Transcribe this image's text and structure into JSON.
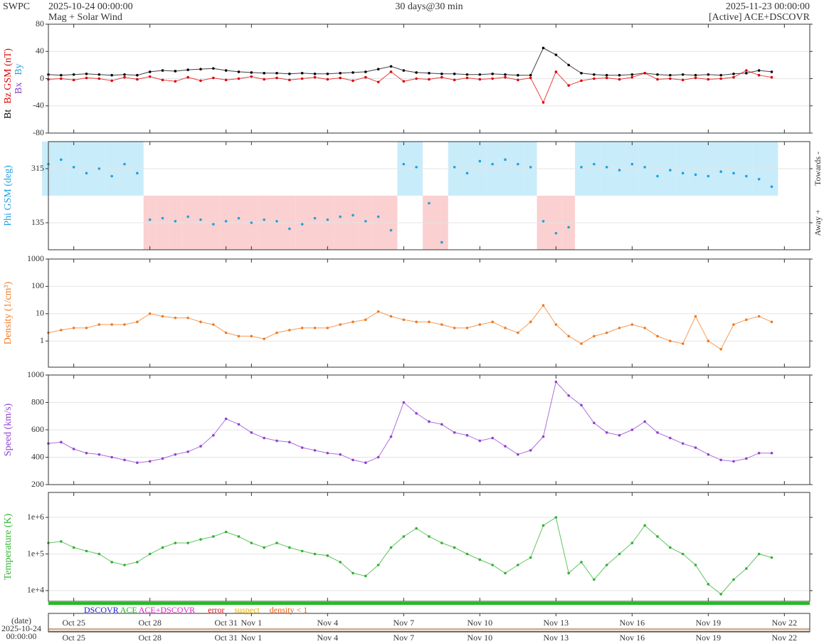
{
  "header": {
    "org": "SWPC",
    "start": "2025-10-24 00:00:00",
    "subtitle": "Mag + Solar Wind",
    "span": "30 days@30 min",
    "end": "2025-11-23 00:00:00",
    "source": "[Active] ACE+DSCOVR"
  },
  "date_label": {
    "title": "(date)",
    "day": "2025-10-24",
    "time": "00:00:00"
  },
  "time_axis": {
    "xlim": [
      0,
      30
    ],
    "xticks": [
      {
        "value": 1,
        "label": "Oct 25"
      },
      {
        "value": 4,
        "label": "Oct 28"
      },
      {
        "value": 7,
        "label": "Oct 31"
      },
      {
        "value": 8,
        "label": "Nov 1"
      },
      {
        "value": 11,
        "label": "Nov 4"
      },
      {
        "value": 14,
        "label": "Nov 7"
      },
      {
        "value": 17,
        "label": "Nov 10"
      },
      {
        "value": 20,
        "label": "Nov 13"
      },
      {
        "value": 23,
        "label": "Nov 16"
      },
      {
        "value": 26,
        "label": "Nov 19"
      },
      {
        "value": 29,
        "label": "Nov 22"
      }
    ],
    "x": [
      0,
      0.5,
      1,
      1.5,
      2,
      2.5,
      3,
      3.5,
      4,
      4.5,
      5,
      5.5,
      6,
      6.5,
      7,
      7.5,
      8,
      8.5,
      9,
      9.5,
      10,
      10.5,
      11,
      11.5,
      12,
      12.5,
      13,
      13.5,
      14,
      14.5,
      15,
      15.5,
      16,
      16.5,
      17,
      17.5,
      18,
      18.5,
      19,
      19.5,
      20,
      20.5,
      21,
      21.5,
      22,
      22.5,
      23,
      23.5,
      24,
      24.5,
      25,
      25.5,
      26,
      26.5,
      27,
      27.5,
      28,
      28.5
    ]
  },
  "status_legend": [
    {
      "text": "DSCOVR",
      "color": "#1a1ad0"
    },
    {
      "text": "ACE",
      "color": "#20b020"
    },
    {
      "text": "ACE+DSCOVR",
      "color": "#e020d0"
    },
    {
      "text": "error",
      "color": "#e01010"
    },
    {
      "text": "suspect",
      "color": "#e8b000"
    },
    {
      "text": "density < 1",
      "color": "#f06010"
    }
  ],
  "chart_data": [
    {
      "type": "line",
      "ylim": [
        -80,
        80
      ],
      "yticks": [
        -80,
        -40,
        0,
        40,
        80
      ],
      "grid": true,
      "extra_labels": [
        {
          "text": "Bx",
          "color": "#8040c0"
        },
        {
          "text": "By",
          "color": "#20a0e0"
        }
      ],
      "series": [
        {
          "name": "Bt",
          "color": "#000000",
          "values": [
            6,
            5,
            6,
            7,
            6,
            5,
            6,
            5,
            10,
            12,
            11,
            13,
            14,
            15,
            12,
            10,
            9,
            8,
            8,
            7,
            8,
            7,
            7,
            8,
            9,
            10,
            14,
            18,
            12,
            9,
            8,
            7,
            7,
            6,
            6,
            7,
            6,
            5,
            5,
            45,
            35,
            20,
            8,
            6,
            5,
            5,
            6,
            8,
            6,
            5,
            6,
            5,
            6,
            5,
            7,
            8,
            12,
            10
          ]
        },
        {
          "name": "Bz GSM (nT)",
          "color": "#e00000",
          "values": [
            -1,
            0,
            -2,
            1,
            0,
            -3,
            2,
            -1,
            3,
            -2,
            -4,
            2,
            -3,
            1,
            -2,
            0,
            3,
            -1,
            1,
            -2,
            0,
            2,
            -1,
            1,
            -3,
            2,
            -5,
            10,
            -4,
            0,
            -1,
            2,
            -2,
            1,
            -1,
            0,
            2,
            -2,
            1,
            -35,
            10,
            -10,
            -3,
            0,
            1,
            -1,
            2,
            8,
            -1,
            0,
            -2,
            1,
            -1,
            0,
            2,
            12,
            5,
            2
          ]
        }
      ]
    },
    {
      "type": "scatter",
      "ylim": [
        45,
        405
      ],
      "yticks": [
        135,
        315
      ],
      "grid": true,
      "right_labels": [
        "Towards -",
        "Away +"
      ],
      "sector_colors": [
        "#c8ecfa",
        "#fbd0d0"
      ],
      "series": [
        {
          "name": "Phi GSM (deg)",
          "color": "#20a0e0",
          "values": [
            330,
            345,
            320,
            300,
            315,
            290,
            330,
            300,
            145,
            150,
            140,
            155,
            145,
            130,
            140,
            150,
            135,
            145,
            140,
            115,
            130,
            150,
            145,
            155,
            160,
            140,
            155,
            110,
            330,
            320,
            200,
            70,
            320,
            300,
            340,
            330,
            345,
            330,
            320,
            140,
            100,
            120,
            320,
            330,
            320,
            310,
            330,
            320,
            290,
            310,
            300,
            295,
            290,
            305,
            300,
            290,
            280,
            255
          ]
        }
      ]
    },
    {
      "type": "line",
      "log": true,
      "ylim": [
        0.11,
        1000
      ],
      "yticks": [
        1,
        10,
        100,
        1000
      ],
      "grid": true,
      "series": [
        {
          "name": "Density (1/cm³)",
          "color": "#f07a20",
          "values": [
            2,
            2.5,
            3,
            3,
            4,
            4,
            4,
            5,
            10,
            8,
            7,
            7,
            5,
            4,
            2,
            1.5,
            1.5,
            1.2,
            2,
            2.5,
            3,
            3,
            3,
            4,
            5,
            6,
            12,
            8,
            6,
            5,
            5,
            4,
            3,
            3,
            4,
            5,
            3,
            2,
            5,
            20,
            4,
            1.5,
            0.8,
            1.5,
            2,
            3,
            4,
            3,
            1.5,
            1,
            0.8,
            8,
            1,
            0.5,
            4,
            6,
            8,
            5
          ]
        }
      ]
    },
    {
      "type": "line",
      "ylim": [
        200,
        1000
      ],
      "yticks": [
        200,
        400,
        600,
        800,
        1000
      ],
      "grid": true,
      "series": [
        {
          "name": "Speed (km/s)",
          "color": "#9040d0",
          "values": [
            500,
            510,
            460,
            430,
            420,
            400,
            380,
            360,
            370,
            390,
            420,
            440,
            480,
            560,
            680,
            640,
            580,
            540,
            520,
            510,
            470,
            450,
            430,
            420,
            380,
            360,
            400,
            550,
            800,
            720,
            660,
            640,
            580,
            560,
            520,
            540,
            480,
            420,
            450,
            550,
            950,
            850,
            780,
            650,
            580,
            560,
            600,
            660,
            580,
            540,
            500,
            470,
            420,
            380,
            370,
            390,
            430,
            430
          ]
        }
      ]
    },
    {
      "type": "line",
      "log": true,
      "ylim": [
        5100,
        4800000
      ],
      "yticks": [
        {
          "value": 10000,
          "label": "1e+4"
        },
        {
          "value": 100000,
          "label": "1e+5"
        },
        {
          "value": 1000000,
          "label": "1e+6"
        }
      ],
      "grid": true,
      "series": [
        {
          "name": "Temperature (K)",
          "color": "#30b030",
          "values": [
            200000,
            220000,
            150000,
            120000,
            100000,
            60000,
            50000,
            60000,
            100000,
            150000,
            200000,
            200000,
            250000,
            300000,
            400000,
            300000,
            200000,
            150000,
            200000,
            150000,
            120000,
            100000,
            90000,
            60000,
            30000,
            25000,
            50000,
            150000,
            300000,
            500000,
            300000,
            200000,
            150000,
            100000,
            70000,
            50000,
            30000,
            50000,
            80000,
            600000,
            1000000,
            30000,
            60000,
            20000,
            50000,
            100000,
            200000,
            600000,
            300000,
            150000,
            100000,
            50000,
            15000,
            8000,
            20000,
            40000,
            100000,
            80000
          ]
        }
      ]
    }
  ]
}
